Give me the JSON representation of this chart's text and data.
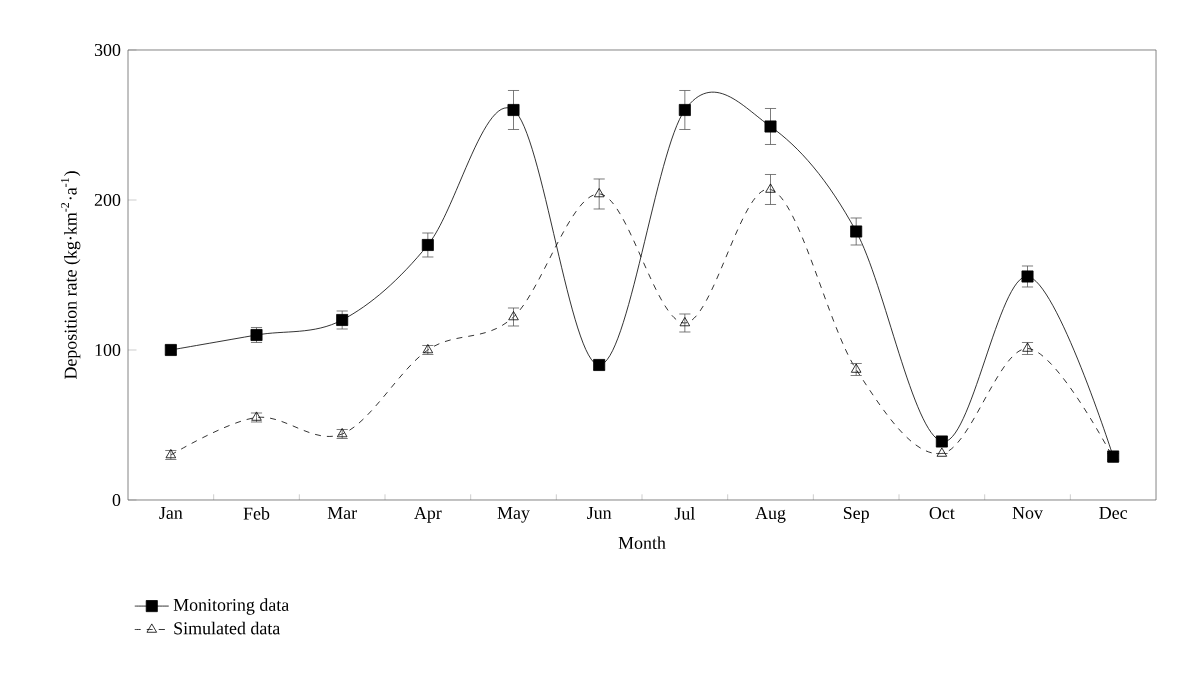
{
  "chart_data": {
    "type": "line",
    "xlabel": "Month",
    "ylabel": "Deposition rate (kg·km$^{-2}$·a$^{-1}$)",
    "categories": [
      "Jan",
      "Feb",
      "Mar",
      "Apr",
      "May",
      "Jun",
      "Jul",
      "Aug",
      "Sep",
      "Oct",
      "Nov",
      "Dec"
    ],
    "series": [
      {
        "name": "Monitoring data",
        "color": "#000000",
        "marker": "square",
        "line_style": "solid",
        "values": [
          100,
          110,
          120,
          170,
          260,
          90,
          260,
          249,
          179,
          39,
          149,
          29
        ],
        "errors": [
          3,
          5,
          6,
          8,
          13,
          3,
          13,
          12,
          9,
          3,
          7,
          2
        ]
      },
      {
        "name": "Simulated data",
        "color": "#000000",
        "marker": "triangle",
        "line_style": "dashed",
        "values": [
          30,
          55,
          44,
          100,
          122,
          204,
          118,
          207,
          87,
          31,
          101,
          28
        ],
        "errors": [
          3,
          3,
          3,
          3,
          6,
          10,
          6,
          10,
          4,
          null,
          4,
          3
        ]
      }
    ],
    "ylim": [
      0,
      300
    ],
    "yticks": [
      0,
      100,
      200,
      300
    ],
    "grid": false,
    "legend": "bottom left"
  }
}
